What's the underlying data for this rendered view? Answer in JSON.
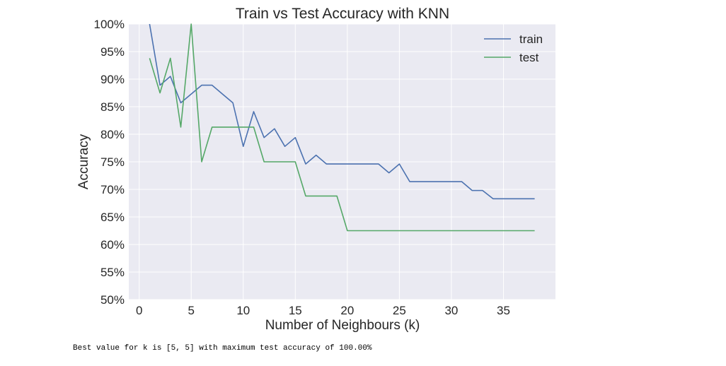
{
  "chart_data": {
    "type": "line",
    "title": "Train vs Test Accuracy with KNN",
    "xlabel": "Number of Neighbours (k)",
    "ylabel": "Accuracy",
    "xlim": [
      -1,
      40
    ],
    "ylim": [
      50,
      100
    ],
    "xticks": [
      0,
      5,
      10,
      15,
      20,
      25,
      30,
      35
    ],
    "xtick_labels": [
      "0",
      "5",
      "10",
      "15",
      "20",
      "25",
      "30",
      "35"
    ],
    "yticks": [
      50,
      55,
      60,
      65,
      70,
      75,
      80,
      85,
      90,
      95,
      100
    ],
    "ytick_labels": [
      "50%",
      "55%",
      "60%",
      "65%",
      "70%",
      "75%",
      "80%",
      "85%",
      "90%",
      "95%",
      "100%"
    ],
    "grid": true,
    "legend_position": "top-right",
    "x": [
      1,
      2,
      3,
      4,
      5,
      6,
      7,
      8,
      9,
      10,
      11,
      12,
      13,
      14,
      15,
      16,
      17,
      18,
      19,
      20,
      21,
      22,
      23,
      24,
      25,
      26,
      27,
      28,
      29,
      30,
      31,
      32,
      33,
      34,
      35,
      36,
      37,
      38
    ],
    "series": [
      {
        "name": "train",
        "color": "#4c72b0",
        "values": [
          100,
          88.9,
          90.5,
          85.7,
          87.3,
          88.9,
          88.9,
          87.3,
          85.7,
          77.8,
          84.1,
          79.4,
          81.0,
          77.8,
          79.4,
          74.6,
          76.2,
          74.6,
          74.6,
          74.6,
          74.6,
          74.6,
          74.6,
          73.0,
          74.6,
          71.4,
          71.4,
          71.4,
          71.4,
          71.4,
          71.4,
          69.8,
          69.8,
          68.3,
          68.3,
          68.3,
          68.3,
          68.3
        ]
      },
      {
        "name": "test",
        "color": "#55a868",
        "values": [
          93.8,
          87.5,
          93.8,
          81.3,
          100,
          75.0,
          81.3,
          81.3,
          81.3,
          81.3,
          81.3,
          75.0,
          75.0,
          75.0,
          75.0,
          68.8,
          68.8,
          68.8,
          68.8,
          62.5,
          62.5,
          62.5,
          62.5,
          62.5,
          62.5,
          62.5,
          62.5,
          62.5,
          62.5,
          62.5,
          62.5,
          62.5,
          62.5,
          62.5,
          62.5,
          62.5,
          62.5,
          62.5
        ]
      }
    ]
  },
  "output": {
    "text": "Best value for k is [5, 5] with maximum test accuracy of 100.00%"
  }
}
